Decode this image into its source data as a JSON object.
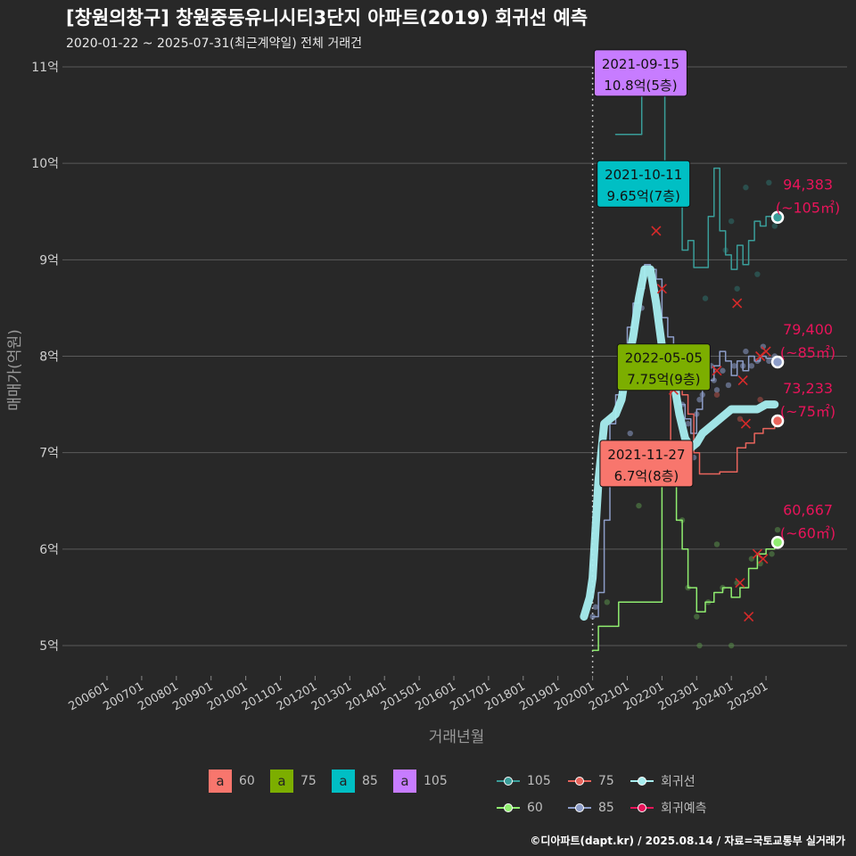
{
  "title": "[창원의창구] 창원중동유니시티3단지 아파트(2019) 회귀선 예측",
  "subtitle": "2020-01-22 ~ 2025-07-31(최근계약일) 전체 거래건",
  "footer": "©디아파트(dapt.kr) / 2025.08.14 / 자료=국토교통부 실거래가",
  "legend": {
    "box_letter": "a",
    "boxes": [
      {
        "label": "60",
        "color": "#f8766d"
      },
      {
        "label": "75",
        "color": "#7cae00"
      },
      {
        "label": "85",
        "color": "#00bfc4"
      },
      {
        "label": "105",
        "color": "#c77cff"
      }
    ],
    "series": [
      {
        "label": "105",
        "color": "#3a9e9a"
      },
      {
        "label": "75",
        "color": "#e8645c"
      },
      {
        "label": "회귀선",
        "color": "#a8eef0"
      },
      {
        "label": "60",
        "color": "#90ee70"
      },
      {
        "label": "85",
        "color": "#8d9dc8"
      },
      {
        "label": "회귀예측",
        "color": "#e8145a"
      }
    ]
  },
  "chart_data": {
    "type": "line",
    "xlabel": "거래년월",
    "ylabel": "매매가(억원)",
    "ylim": [
      4.7,
      11.1
    ],
    "ytick_values": [
      5,
      6,
      7,
      8,
      9,
      10,
      11
    ],
    "ytick_labels": [
      "5억",
      "6억",
      "7억",
      "8억",
      "9억",
      "10억",
      "11억"
    ],
    "xtick_labels": [
      "200601",
      "200701",
      "200801",
      "200901",
      "201001",
      "201101",
      "201201",
      "201301",
      "201401",
      "201501",
      "201601",
      "201701",
      "201801",
      "201901",
      "202001",
      "202101",
      "202201",
      "202301",
      "202401",
      "202501"
    ],
    "x_start": "2006-01",
    "vline_date": "2020-01",
    "series": [
      {
        "name": "105",
        "color": "#3a9e9a",
        "points": [
          [
            "2020-09",
            10.3
          ],
          [
            "2020-12",
            10.3
          ],
          [
            "2021-06",
            10.8
          ],
          [
            "2021-09",
            10.8
          ],
          [
            "2022-02",
            9.65
          ],
          [
            "2022-06",
            9.65
          ],
          [
            "2022-08",
            9.1
          ],
          [
            "2022-10",
            9.2
          ],
          [
            "2022-12",
            8.92
          ],
          [
            "2023-03",
            8.92
          ],
          [
            "2023-05",
            9.45
          ],
          [
            "2023-07",
            9.95
          ],
          [
            "2023-09",
            9.3
          ],
          [
            "2023-11",
            9.05
          ],
          [
            "2024-01",
            8.9
          ],
          [
            "2024-03",
            9.15
          ],
          [
            "2024-05",
            8.95
          ],
          [
            "2024-07",
            9.2
          ],
          [
            "2024-09",
            9.4
          ],
          [
            "2024-11",
            9.35
          ],
          [
            "2025-01",
            9.45
          ],
          [
            "2025-04",
            9.4
          ]
        ]
      },
      {
        "name": "85",
        "color": "#8d9dc8",
        "points": [
          [
            "2020-01",
            5.3
          ],
          [
            "2020-03",
            5.55
          ],
          [
            "2020-05",
            6.3
          ],
          [
            "2020-07",
            7.3
          ],
          [
            "2020-09",
            7.6
          ],
          [
            "2020-11",
            8.1
          ],
          [
            "2021-01",
            8.3
          ],
          [
            "2021-03",
            8.55
          ],
          [
            "2021-05",
            8.7
          ],
          [
            "2021-07",
            8.95
          ],
          [
            "2021-09",
            8.9
          ],
          [
            "2021-11",
            8.8
          ],
          [
            "2022-01",
            8.4
          ],
          [
            "2022-03",
            8.2
          ],
          [
            "2022-05",
            7.75
          ],
          [
            "2022-07",
            7.5
          ],
          [
            "2022-09",
            7.35
          ],
          [
            "2022-11",
            7.2
          ],
          [
            "2023-01",
            7.45
          ],
          [
            "2023-03",
            7.7
          ],
          [
            "2023-05",
            7.75
          ],
          [
            "2023-07",
            7.9
          ],
          [
            "2023-09",
            8.05
          ],
          [
            "2023-11",
            7.95
          ],
          [
            "2024-01",
            7.8
          ],
          [
            "2024-03",
            7.95
          ],
          [
            "2024-05",
            7.85
          ],
          [
            "2024-07",
            8.0
          ],
          [
            "2024-09",
            7.95
          ],
          [
            "2024-11",
            8.0
          ],
          [
            "2025-01",
            7.98
          ],
          [
            "2025-04",
            7.97
          ]
        ]
      },
      {
        "name": "75",
        "color": "#e8645c",
        "points": [
          [
            "2021-11",
            6.7
          ],
          [
            "2022-04",
            7.75
          ],
          [
            "2022-08",
            7.6
          ],
          [
            "2022-10",
            7.4
          ],
          [
            "2022-12",
            7.0
          ],
          [
            "2023-02",
            6.78
          ],
          [
            "2023-05",
            6.78
          ],
          [
            "2023-09",
            6.8
          ],
          [
            "2024-01",
            6.8
          ],
          [
            "2024-03",
            7.05
          ],
          [
            "2024-06",
            7.1
          ],
          [
            "2024-09",
            7.2
          ],
          [
            "2024-12",
            7.25
          ],
          [
            "2025-04",
            7.28
          ]
        ]
      },
      {
        "name": "60",
        "color": "#90ee70",
        "points": [
          [
            "2020-01",
            4.95
          ],
          [
            "2020-03",
            5.2
          ],
          [
            "2020-08",
            5.2
          ],
          [
            "2020-10",
            5.45
          ],
          [
            "2022-01",
            6.7
          ],
          [
            "2022-06",
            6.3
          ],
          [
            "2022-08",
            6.0
          ],
          [
            "2022-10",
            5.6
          ],
          [
            "2023-01",
            5.35
          ],
          [
            "2023-04",
            5.45
          ],
          [
            "2023-07",
            5.55
          ],
          [
            "2023-10",
            5.6
          ],
          [
            "2024-01",
            5.5
          ],
          [
            "2024-04",
            5.6
          ],
          [
            "2024-07",
            5.8
          ],
          [
            "2024-10",
            5.95
          ],
          [
            "2025-01",
            6.0
          ],
          [
            "2025-04",
            6.05
          ]
        ]
      },
      {
        "name": "회귀선",
        "color": "#a8eef0",
        "points": [
          [
            "2019-10",
            5.3
          ],
          [
            "2019-12",
            5.5
          ],
          [
            "2020-01",
            5.7
          ],
          [
            "2020-03",
            6.7
          ],
          [
            "2020-05",
            7.3
          ],
          [
            "2020-09",
            7.4
          ],
          [
            "2020-11",
            7.55
          ],
          [
            "2021-01",
            7.9
          ],
          [
            "2021-03",
            8.2
          ],
          [
            "2021-05",
            8.6
          ],
          [
            "2021-07",
            8.9
          ],
          [
            "2021-09",
            8.9
          ],
          [
            "2021-11",
            8.55
          ],
          [
            "2022-01",
            8.1
          ],
          [
            "2022-03",
            7.95
          ],
          [
            "2022-05",
            7.75
          ],
          [
            "2022-07",
            7.4
          ],
          [
            "2022-09",
            7.15
          ],
          [
            "2022-11",
            7.05
          ],
          [
            "2023-01",
            7.1
          ],
          [
            "2023-03",
            7.2
          ],
          [
            "2023-05",
            7.25
          ],
          [
            "2023-07",
            7.3
          ],
          [
            "2023-09",
            7.35
          ],
          [
            "2023-11",
            7.4
          ],
          [
            "2024-01",
            7.45
          ],
          [
            "2024-04",
            7.45
          ],
          [
            "2024-07",
            7.45
          ],
          [
            "2024-10",
            7.45
          ],
          [
            "2025-01",
            7.5
          ],
          [
            "2025-04",
            7.5
          ]
        ]
      }
    ],
    "scatter": [
      {
        "size": "85",
        "color": "#8d9dc8",
        "points": [
          [
            "2020-01",
            5.3
          ],
          [
            "2020-02",
            5.4
          ],
          [
            "2021-02",
            7.2
          ],
          [
            "2021-06",
            8.5
          ],
          [
            "2022-06",
            7.7
          ],
          [
            "2022-08",
            7.5
          ],
          [
            "2022-10",
            7.3
          ],
          [
            "2022-12",
            6.95
          ],
          [
            "2023-01",
            7.4
          ],
          [
            "2023-02",
            7.55
          ],
          [
            "2023-03",
            7.6
          ],
          [
            "2023-04",
            7.7
          ],
          [
            "2023-06",
            7.9
          ],
          [
            "2023-07",
            7.75
          ],
          [
            "2023-08",
            7.65
          ],
          [
            "2023-10",
            7.85
          ],
          [
            "2023-12",
            7.7
          ],
          [
            "2024-02",
            7.9
          ],
          [
            "2024-05",
            7.9
          ],
          [
            "2024-06",
            8.05
          ],
          [
            "2024-08",
            7.9
          ],
          [
            "2024-10",
            7.95
          ],
          [
            "2024-12",
            8.1
          ],
          [
            "2025-02",
            7.95
          ],
          [
            "2025-04",
            8.0
          ]
        ]
      },
      {
        "size": "60",
        "color": "#5a8f4a",
        "points": [
          [
            "2020-06",
            5.45
          ],
          [
            "2021-05",
            6.45
          ],
          [
            "2022-08",
            6.3
          ],
          [
            "2022-10",
            5.6
          ],
          [
            "2023-01",
            5.3
          ],
          [
            "2023-02",
            5.0
          ],
          [
            "2023-05",
            5.45
          ],
          [
            "2023-08",
            6.05
          ],
          [
            "2023-10",
            5.6
          ],
          [
            "2024-01",
            5.0
          ],
          [
            "2024-03",
            5.65
          ],
          [
            "2024-08",
            5.9
          ],
          [
            "2024-11",
            5.85
          ],
          [
            "2025-03",
            5.95
          ],
          [
            "2025-05",
            6.2
          ]
        ]
      },
      {
        "size": "105",
        "color": "#2e6f6b",
        "points": [
          [
            "2023-04",
            8.6
          ],
          [
            "2023-11",
            9.1
          ],
          [
            "2024-01",
            9.4
          ],
          [
            "2024-03",
            8.7
          ],
          [
            "2024-06",
            9.75
          ],
          [
            "2024-10",
            8.85
          ],
          [
            "2025-02",
            9.8
          ],
          [
            "2025-04",
            9.35
          ]
        ]
      },
      {
        "size": "75",
        "color": "#b05048",
        "points": [
          [
            "2022-07",
            8.0
          ],
          [
            "2023-08",
            7.6
          ],
          [
            "2024-04",
            7.35
          ],
          [
            "2024-11",
            7.55
          ]
        ]
      }
    ],
    "crosses": [
      [
        "2021-11",
        9.3
      ],
      [
        "2022-01",
        8.7
      ],
      [
        "2022-05",
        7.65
      ],
      [
        "2023-08",
        7.85
      ],
      [
        "2024-03",
        8.55
      ],
      [
        "2024-05",
        7.75
      ],
      [
        "2024-06",
        7.3
      ],
      [
        "2024-07",
        5.3
      ],
      [
        "2024-04",
        5.65
      ],
      [
        "2024-10",
        5.95
      ],
      [
        "2024-12",
        5.9
      ],
      [
        "2024-11",
        8.0
      ],
      [
        "2025-01",
        8.05
      ]
    ],
    "endpoints": [
      {
        "date": "2025-05",
        "value": 9.44,
        "color": "#3a9e9a",
        "label": "94,383",
        "sub": "(~105㎡)"
      },
      {
        "date": "2025-05",
        "value": 7.94,
        "color": "#8d9dc8",
        "label": "79,400",
        "sub": "(~85㎡)"
      },
      {
        "date": "2025-05",
        "value": 7.33,
        "color": "#e8645c",
        "label": "73,233",
        "sub": "(~75㎡)"
      },
      {
        "date": "2025-05",
        "value": 6.07,
        "color": "#90ee70",
        "label": "60,667",
        "sub": "(~60㎡)"
      }
    ],
    "callouts": [
      {
        "date": "2021-09-15",
        "value": "10.8억(5층)",
        "color": "#c77cff",
        "anchor_y": 10.9
      },
      {
        "date": "2021-10-11",
        "value": "9.65억(7층)",
        "color": "#00bfc4",
        "anchor_y": 9.75
      },
      {
        "date": "2022-05-05",
        "value": "7.75억(9층)",
        "color": "#7cae00",
        "anchor_y": 7.85
      },
      {
        "date": "2021-11-27",
        "value": "6.7억(8층)",
        "color": "#f8766d",
        "anchor_y": 6.85
      }
    ]
  }
}
